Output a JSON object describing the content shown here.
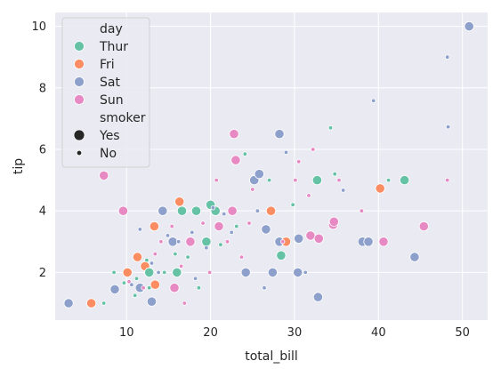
{
  "chart_data": {
    "type": "scatter",
    "xlabel": "total_bill",
    "ylabel": "tip",
    "xlim": [
      1.5,
      53.0
    ],
    "ylim": [
      0.45,
      10.45
    ],
    "x_ticks": [
      10,
      20,
      30,
      40,
      50
    ],
    "y_ticks": [
      2,
      4,
      6,
      8,
      10
    ],
    "grid": true,
    "legend_position": "top-left",
    "legend": {
      "hue_title": "day",
      "size_title": "smoker",
      "days": [
        {
          "name": "Thur",
          "color": "#66c2a5"
        },
        {
          "name": "Fri",
          "color": "#fc8d62"
        },
        {
          "name": "Sat",
          "color": "#8da0cb"
        },
        {
          "name": "Sun",
          "color": "#e78ac3"
        }
      ],
      "smokers": [
        {
          "name": "Yes",
          "size": "large"
        },
        {
          "name": "No",
          "size": "small"
        }
      ]
    },
    "points": [
      {
        "x": 3.1,
        "y": 1.0,
        "day": "Sat",
        "smoker": "Yes"
      },
      {
        "x": 5.8,
        "y": 1.0,
        "day": "Fri",
        "smoker": "Yes"
      },
      {
        "x": 7.3,
        "y": 5.15,
        "day": "Sun",
        "smoker": "Yes"
      },
      {
        "x": 8.6,
        "y": 1.45,
        "day": "Sat",
        "smoker": "Yes"
      },
      {
        "x": 9.6,
        "y": 4.0,
        "day": "Sun",
        "smoker": "Yes"
      },
      {
        "x": 10.1,
        "y": 2.0,
        "day": "Fri",
        "smoker": "Yes"
      },
      {
        "x": 11.3,
        "y": 2.5,
        "day": "Fri",
        "smoker": "Yes"
      },
      {
        "x": 11.6,
        "y": 1.5,
        "day": "Sat",
        "smoker": "Yes"
      },
      {
        "x": 12.2,
        "y": 2.2,
        "day": "Fri",
        "smoker": "Yes"
      },
      {
        "x": 12.7,
        "y": 2.0,
        "day": "Thur",
        "smoker": "Yes"
      },
      {
        "x": 13.0,
        "y": 1.05,
        "day": "Sat",
        "smoker": "Yes"
      },
      {
        "x": 13.3,
        "y": 3.5,
        "day": "Fri",
        "smoker": "Yes"
      },
      {
        "x": 13.4,
        "y": 1.6,
        "day": "Fri",
        "smoker": "Yes"
      },
      {
        "x": 14.3,
        "y": 4.0,
        "day": "Sat",
        "smoker": "Yes"
      },
      {
        "x": 15.5,
        "y": 3.0,
        "day": "Sat",
        "smoker": "Yes"
      },
      {
        "x": 15.7,
        "y": 1.5,
        "day": "Sun",
        "smoker": "Yes"
      },
      {
        "x": 16.0,
        "y": 2.0,
        "day": "Thur",
        "smoker": "Yes"
      },
      {
        "x": 16.3,
        "y": 4.3,
        "day": "Fri",
        "smoker": "Yes"
      },
      {
        "x": 16.6,
        "y": 4.0,
        "day": "Thur",
        "smoker": "Yes"
      },
      {
        "x": 17.6,
        "y": 3.0,
        "day": "Sun",
        "smoker": "Yes"
      },
      {
        "x": 18.3,
        "y": 4.0,
        "day": "Thur",
        "smoker": "Yes"
      },
      {
        "x": 19.5,
        "y": 3.0,
        "day": "Thur",
        "smoker": "Yes"
      },
      {
        "x": 20.0,
        "y": 4.2,
        "day": "Thur",
        "smoker": "Yes"
      },
      {
        "x": 20.6,
        "y": 4.0,
        "day": "Thur",
        "smoker": "Yes"
      },
      {
        "x": 21.0,
        "y": 3.5,
        "day": "Sun",
        "smoker": "Yes"
      },
      {
        "x": 22.8,
        "y": 6.5,
        "day": "Sun",
        "smoker": "Yes"
      },
      {
        "x": 23.0,
        "y": 5.65,
        "day": "Sun",
        "smoker": "Yes"
      },
      {
        "x": 22.6,
        "y": 4.0,
        "day": "Sun",
        "smoker": "Yes"
      },
      {
        "x": 24.2,
        "y": 2.0,
        "day": "Sat",
        "smoker": "Yes"
      },
      {
        "x": 25.2,
        "y": 5.0,
        "day": "Sat",
        "smoker": "Yes"
      },
      {
        "x": 25.8,
        "y": 5.2,
        "day": "Sat",
        "smoker": "Yes"
      },
      {
        "x": 26.6,
        "y": 3.4,
        "day": "Sat",
        "smoker": "Yes"
      },
      {
        "x": 27.2,
        "y": 4.0,
        "day": "Fri",
        "smoker": "Yes"
      },
      {
        "x": 27.4,
        "y": 2.0,
        "day": "Sat",
        "smoker": "Yes"
      },
      {
        "x": 28.2,
        "y": 6.5,
        "day": "Sat",
        "smoker": "Yes"
      },
      {
        "x": 28.4,
        "y": 2.55,
        "day": "Thur",
        "smoker": "Yes"
      },
      {
        "x": 28.2,
        "y": 3.0,
        "day": "Sat",
        "smoker": "Yes"
      },
      {
        "x": 29.0,
        "y": 3.0,
        "day": "Fri",
        "smoker": "Yes"
      },
      {
        "x": 30.4,
        "y": 2.0,
        "day": "Sat",
        "smoker": "Yes"
      },
      {
        "x": 30.5,
        "y": 3.1,
        "day": "Sat",
        "smoker": "Yes"
      },
      {
        "x": 31.9,
        "y": 3.2,
        "day": "Sun",
        "smoker": "Yes"
      },
      {
        "x": 32.7,
        "y": 5.0,
        "day": "Thur",
        "smoker": "Yes"
      },
      {
        "x": 32.8,
        "y": 1.2,
        "day": "Sat",
        "smoker": "Yes"
      },
      {
        "x": 32.9,
        "y": 3.1,
        "day": "Sun",
        "smoker": "Yes"
      },
      {
        "x": 34.6,
        "y": 3.55,
        "day": "Sun",
        "smoker": "Yes"
      },
      {
        "x": 34.7,
        "y": 3.65,
        "day": "Sun",
        "smoker": "Yes"
      },
      {
        "x": 38.1,
        "y": 3.0,
        "day": "Sat",
        "smoker": "Yes"
      },
      {
        "x": 38.8,
        "y": 3.0,
        "day": "Sat",
        "smoker": "Yes"
      },
      {
        "x": 40.2,
        "y": 4.73,
        "day": "Fri",
        "smoker": "Yes"
      },
      {
        "x": 40.6,
        "y": 3.0,
        "day": "Sun",
        "smoker": "Yes"
      },
      {
        "x": 43.1,
        "y": 5.0,
        "day": "Thur",
        "smoker": "Yes"
      },
      {
        "x": 44.3,
        "y": 2.5,
        "day": "Sat",
        "smoker": "Yes"
      },
      {
        "x": 45.4,
        "y": 3.5,
        "day": "Sun",
        "smoker": "Yes"
      },
      {
        "x": 50.8,
        "y": 10.0,
        "day": "Sat",
        "smoker": "Yes"
      },
      {
        "x": 7.3,
        "y": 1.0,
        "day": "Thur",
        "smoker": "No"
      },
      {
        "x": 8.5,
        "y": 2.0,
        "day": "Thur",
        "smoker": "No"
      },
      {
        "x": 9.7,
        "y": 1.66,
        "day": "Thur",
        "smoker": "No"
      },
      {
        "x": 10.3,
        "y": 1.7,
        "day": "Sun",
        "smoker": "No"
      },
      {
        "x": 10.6,
        "y": 1.6,
        "day": "Sat",
        "smoker": "No"
      },
      {
        "x": 11.0,
        "y": 1.25,
        "day": "Thur",
        "smoker": "No"
      },
      {
        "x": 11.2,
        "y": 1.8,
        "day": "Thur",
        "smoker": "No"
      },
      {
        "x": 11.6,
        "y": 3.4,
        "day": "Sat",
        "smoker": "No"
      },
      {
        "x": 12.0,
        "y": 1.5,
        "day": "Sun",
        "smoker": "No"
      },
      {
        "x": 12.4,
        "y": 2.4,
        "day": "Thur",
        "smoker": "No"
      },
      {
        "x": 12.7,
        "y": 1.5,
        "day": "Thur",
        "smoker": "No"
      },
      {
        "x": 13.0,
        "y": 2.3,
        "day": "Sat",
        "smoker": "No"
      },
      {
        "x": 13.4,
        "y": 2.6,
        "day": "Sun",
        "smoker": "No"
      },
      {
        "x": 13.8,
        "y": 2.0,
        "day": "Sat",
        "smoker": "No"
      },
      {
        "x": 14.1,
        "y": 3.0,
        "day": "Sun",
        "smoker": "No"
      },
      {
        "x": 14.5,
        "y": 2.0,
        "day": "Thur",
        "smoker": "No"
      },
      {
        "x": 14.9,
        "y": 3.2,
        "day": "Sat",
        "smoker": "No"
      },
      {
        "x": 15.4,
        "y": 3.5,
        "day": "Sun",
        "smoker": "No"
      },
      {
        "x": 15.8,
        "y": 2.6,
        "day": "Thur",
        "smoker": "No"
      },
      {
        "x": 16.2,
        "y": 3.0,
        "day": "Sat",
        "smoker": "No"
      },
      {
        "x": 16.5,
        "y": 2.2,
        "day": "Sun",
        "smoker": "No"
      },
      {
        "x": 16.9,
        "y": 1.0,
        "day": "Sun",
        "smoker": "No"
      },
      {
        "x": 17.3,
        "y": 2.5,
        "day": "Thur",
        "smoker": "No"
      },
      {
        "x": 17.8,
        "y": 3.3,
        "day": "Sat",
        "smoker": "No"
      },
      {
        "x": 18.2,
        "y": 1.8,
        "day": "Sat",
        "smoker": "No"
      },
      {
        "x": 18.6,
        "y": 1.5,
        "day": "Thur",
        "smoker": "No"
      },
      {
        "x": 19.1,
        "y": 3.6,
        "day": "Sun",
        "smoker": "No"
      },
      {
        "x": 19.5,
        "y": 2.8,
        "day": "Sat",
        "smoker": "No"
      },
      {
        "x": 19.9,
        "y": 2.0,
        "day": "Sun",
        "smoker": "No"
      },
      {
        "x": 20.3,
        "y": 4.1,
        "day": "Sat",
        "smoker": "No"
      },
      {
        "x": 20.7,
        "y": 5.0,
        "day": "Sun",
        "smoker": "No"
      },
      {
        "x": 21.2,
        "y": 2.9,
        "day": "Thur",
        "smoker": "No"
      },
      {
        "x": 21.6,
        "y": 3.9,
        "day": "Sat",
        "smoker": "No"
      },
      {
        "x": 22.0,
        "y": 3.0,
        "day": "Sun",
        "smoker": "No"
      },
      {
        "x": 22.5,
        "y": 3.3,
        "day": "Sat",
        "smoker": "No"
      },
      {
        "x": 23.1,
        "y": 3.5,
        "day": "Thur",
        "smoker": "No"
      },
      {
        "x": 23.7,
        "y": 2.5,
        "day": "Sun",
        "smoker": "No"
      },
      {
        "x": 24.1,
        "y": 5.85,
        "day": "Thur",
        "smoker": "No"
      },
      {
        "x": 24.6,
        "y": 3.6,
        "day": "Sun",
        "smoker": "No"
      },
      {
        "x": 25.0,
        "y": 4.7,
        "day": "Sun",
        "smoker": "No"
      },
      {
        "x": 25.6,
        "y": 4.0,
        "day": "Sat",
        "smoker": "No"
      },
      {
        "x": 26.4,
        "y": 1.5,
        "day": "Sat",
        "smoker": "No"
      },
      {
        "x": 27.0,
        "y": 5.0,
        "day": "Thur",
        "smoker": "No"
      },
      {
        "x": 28.6,
        "y": 3.0,
        "day": "Sun",
        "smoker": "No"
      },
      {
        "x": 29.0,
        "y": 5.9,
        "day": "Sat",
        "smoker": "No"
      },
      {
        "x": 29.8,
        "y": 4.2,
        "day": "Thur",
        "smoker": "No"
      },
      {
        "x": 30.1,
        "y": 5.0,
        "day": "Sun",
        "smoker": "No"
      },
      {
        "x": 30.5,
        "y": 5.6,
        "day": "Sun",
        "smoker": "No"
      },
      {
        "x": 31.3,
        "y": 2.0,
        "day": "Sat",
        "smoker": "No"
      },
      {
        "x": 31.7,
        "y": 4.5,
        "day": "Sun",
        "smoker": "No"
      },
      {
        "x": 32.2,
        "y": 6.0,
        "day": "Sun",
        "smoker": "No"
      },
      {
        "x": 34.3,
        "y": 6.7,
        "day": "Thur",
        "smoker": "No"
      },
      {
        "x": 34.8,
        "y": 5.2,
        "day": "Thur",
        "smoker": "No"
      },
      {
        "x": 35.3,
        "y": 5.0,
        "day": "Sun",
        "smoker": "No"
      },
      {
        "x": 35.8,
        "y": 4.67,
        "day": "Sat",
        "smoker": "No"
      },
      {
        "x": 38.0,
        "y": 4.0,
        "day": "Sun",
        "smoker": "No"
      },
      {
        "x": 39.4,
        "y": 7.58,
        "day": "Sat",
        "smoker": "No"
      },
      {
        "x": 41.2,
        "y": 5.0,
        "day": "Thur",
        "smoker": "No"
      },
      {
        "x": 48.2,
        "y": 9.0,
        "day": "Sat",
        "smoker": "No"
      },
      {
        "x": 48.3,
        "y": 6.73,
        "day": "Sat",
        "smoker": "No"
      },
      {
        "x": 48.2,
        "y": 5.0,
        "day": "Sun",
        "smoker": "No"
      }
    ]
  }
}
